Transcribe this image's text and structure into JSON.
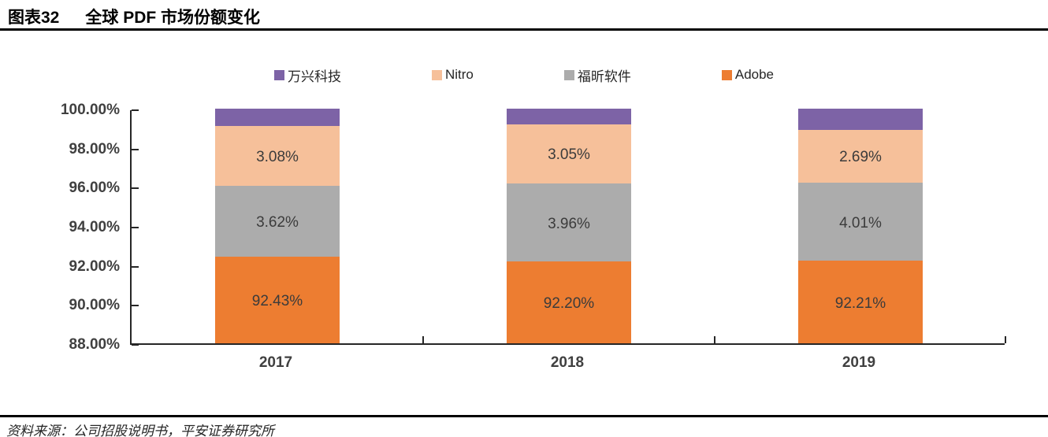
{
  "header": {
    "figure_label": "图表32",
    "title": "全球 PDF 市场份额变化"
  },
  "footer": {
    "source": "资料来源：公司招股说明书，平安证券研究所"
  },
  "chart_data": {
    "type": "bar",
    "subtype": "stacked",
    "title": "全球 PDF 市场份额变化",
    "categories": [
      "2017",
      "2018",
      "2019"
    ],
    "series": [
      {
        "name": "Adobe",
        "color": "#ED7D31",
        "values": [
          92.43,
          92.2,
          92.21
        ],
        "labels": [
          "92.43%",
          "92.20%",
          "92.21%"
        ]
      },
      {
        "name": "福昕软件",
        "color": "#ACACAC",
        "values": [
          3.62,
          3.96,
          4.01
        ],
        "labels": [
          "3.62%",
          "3.96%",
          "4.01%"
        ]
      },
      {
        "name": "Nitro",
        "color": "#F6C09A",
        "values": [
          3.08,
          3.05,
          2.69
        ],
        "labels": [
          "3.08%",
          "3.05%",
          "2.69%"
        ]
      },
      {
        "name": "万兴科技",
        "color": "#7D63A6",
        "values": [
          0.87,
          0.79,
          1.09
        ],
        "labels": [
          "",
          "",
          ""
        ]
      }
    ],
    "legend_order": [
      "万兴科技",
      "Nitro",
      "福昕软件",
      "Adobe"
    ],
    "legend_position": "top",
    "grid": false,
    "ylim": [
      88,
      100
    ],
    "y_ticks": [
      "100.00%",
      "98.00%",
      "96.00%",
      "94.00%",
      "92.00%",
      "90.00%",
      "88.00%"
    ],
    "y_tick_values": [
      100,
      98,
      96,
      94,
      92,
      90,
      88
    ]
  }
}
